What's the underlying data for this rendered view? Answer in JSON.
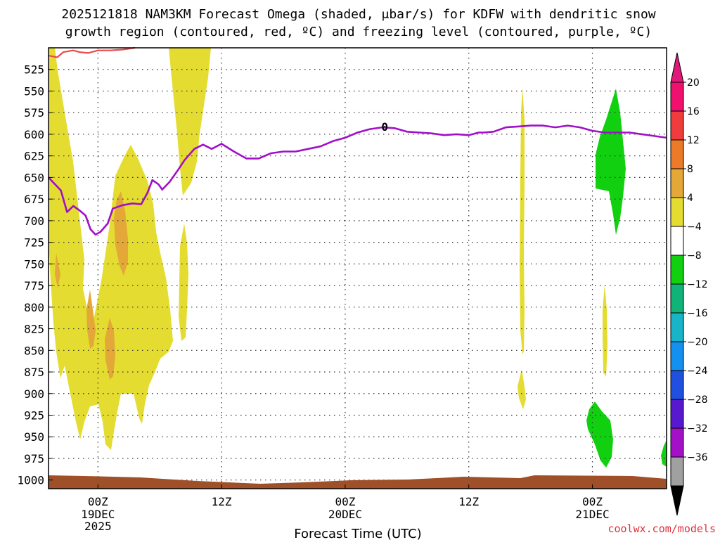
{
  "chart_data": {
    "type": "time-height contour plot",
    "title_line1": "2025121818 NAM3KM Forecast Omega (shaded, μbar/s) for KDFW with dendritic snow",
    "title_line2": "growth region (contoured, red, ºC) and freezing level (contoured, purple, ºC)",
    "xlabel": "Forecast Time (UTC)",
    "x_range_hours": [
      -4,
      46
    ],
    "x_ticks": [
      {
        "hour": 0,
        "label": "00Z",
        "sub1": "19DEC",
        "sub2": "2025"
      },
      {
        "hour": 10,
        "label": "12Z",
        "sub1": "",
        "sub2": ""
      },
      {
        "hour": 20,
        "label": "00Z",
        "sub1": "20DEC",
        "sub2": ""
      },
      {
        "hour": 30,
        "label": "12Z",
        "sub1": "",
        "sub2": ""
      },
      {
        "hour": 40,
        "label": "00Z",
        "sub1": "21DEC",
        "sub2": ""
      }
    ],
    "y_range_mb": [
      500,
      1010
    ],
    "y_ticks": [
      525,
      550,
      575,
      600,
      625,
      650,
      675,
      700,
      725,
      750,
      775,
      800,
      825,
      850,
      875,
      900,
      925,
      950,
      975,
      1000
    ],
    "colorbar": {
      "labels": [
        "20",
        "16",
        "12",
        "8",
        "4",
        "−4",
        "−8",
        "−12",
        "−16",
        "−20",
        "−24",
        "−28",
        "−32",
        "−36"
      ],
      "colors": [
        "#f0106e",
        "#f03c3c",
        "#ec7a28",
        "#e4a838",
        "#e4dc30",
        "#ffffff",
        "#10d010",
        "#10b478",
        "#18b4c8",
        "#1490f0",
        "#2050e0",
        "#5818d0",
        "#a410c8",
        "#a0a0a0"
      ],
      "top_arrow_color": "#e0187a",
      "bottom_arrow_color": "#000000"
    },
    "freezing_level_line": {
      "color": "#a010c8",
      "label": "0",
      "points": [
        [
          -4,
          650
        ],
        [
          -3,
          665
        ],
        [
          -2.5,
          690
        ],
        [
          -2,
          683
        ],
        [
          -1.5,
          688
        ],
        [
          -1,
          694
        ],
        [
          -0.6,
          710
        ],
        [
          -0.2,
          716
        ],
        [
          0.2,
          713
        ],
        [
          0.8,
          703
        ],
        [
          1.2,
          686
        ],
        [
          2,
          682
        ],
        [
          2.8,
          680
        ],
        [
          3.5,
          681
        ],
        [
          4,
          668
        ],
        [
          4.4,
          653
        ],
        [
          4.9,
          658
        ],
        [
          5.2,
          664
        ],
        [
          5.8,
          655
        ],
        [
          6.4,
          643
        ],
        [
          7,
          630
        ],
        [
          7.8,
          617
        ],
        [
          8.5,
          612
        ],
        [
          9.2,
          617
        ],
        [
          10,
          611
        ],
        [
          11,
          620
        ],
        [
          12,
          628
        ],
        [
          13,
          628
        ],
        [
          14,
          622
        ],
        [
          15,
          620
        ],
        [
          16,
          620
        ],
        [
          17,
          617
        ],
        [
          18,
          614
        ],
        [
          19,
          608
        ],
        [
          20,
          604
        ],
        [
          21,
          598
        ],
        [
          22,
          594
        ],
        [
          23,
          592
        ],
        [
          24,
          593
        ],
        [
          25,
          597
        ],
        [
          26,
          598
        ],
        [
          27,
          599
        ],
        [
          28,
          601
        ],
        [
          29,
          600
        ],
        [
          30,
          601
        ],
        [
          30.8,
          598
        ],
        [
          31.2,
          598
        ],
        [
          32,
          597
        ],
        [
          33,
          592
        ],
        [
          34,
          591
        ],
        [
          35,
          590
        ],
        [
          36,
          590
        ],
        [
          37,
          592
        ],
        [
          38,
          590
        ],
        [
          39,
          592
        ],
        [
          40,
          596
        ],
        [
          41,
          598
        ],
        [
          42,
          598
        ],
        [
          43,
          598
        ],
        [
          44,
          600
        ],
        [
          45,
          602
        ],
        [
          46,
          604
        ]
      ]
    },
    "dendritic_region_line": {
      "color": "#f04848",
      "points": [
        [
          -4,
          509
        ],
        [
          -3.3,
          511
        ],
        [
          -2.8,
          505
        ],
        [
          -2,
          503
        ],
        [
          -1.5,
          505
        ],
        [
          -0.8,
          506
        ],
        [
          0,
          503
        ],
        [
          1,
          503
        ],
        [
          2,
          502
        ],
        [
          3,
          500
        ]
      ]
    },
    "shaded_regions": [
      {
        "kind": "omega",
        "value": "4 to 8",
        "color": "#e4dc30"
      },
      {
        "kind": "omega",
        "value": "8 to 12",
        "color": "#e4a838"
      },
      {
        "kind": "omega",
        "value": "-4 to -8",
        "color": "#10d010"
      }
    ],
    "terrain_color": "#a05028",
    "credit": "coolwx.com/models"
  }
}
